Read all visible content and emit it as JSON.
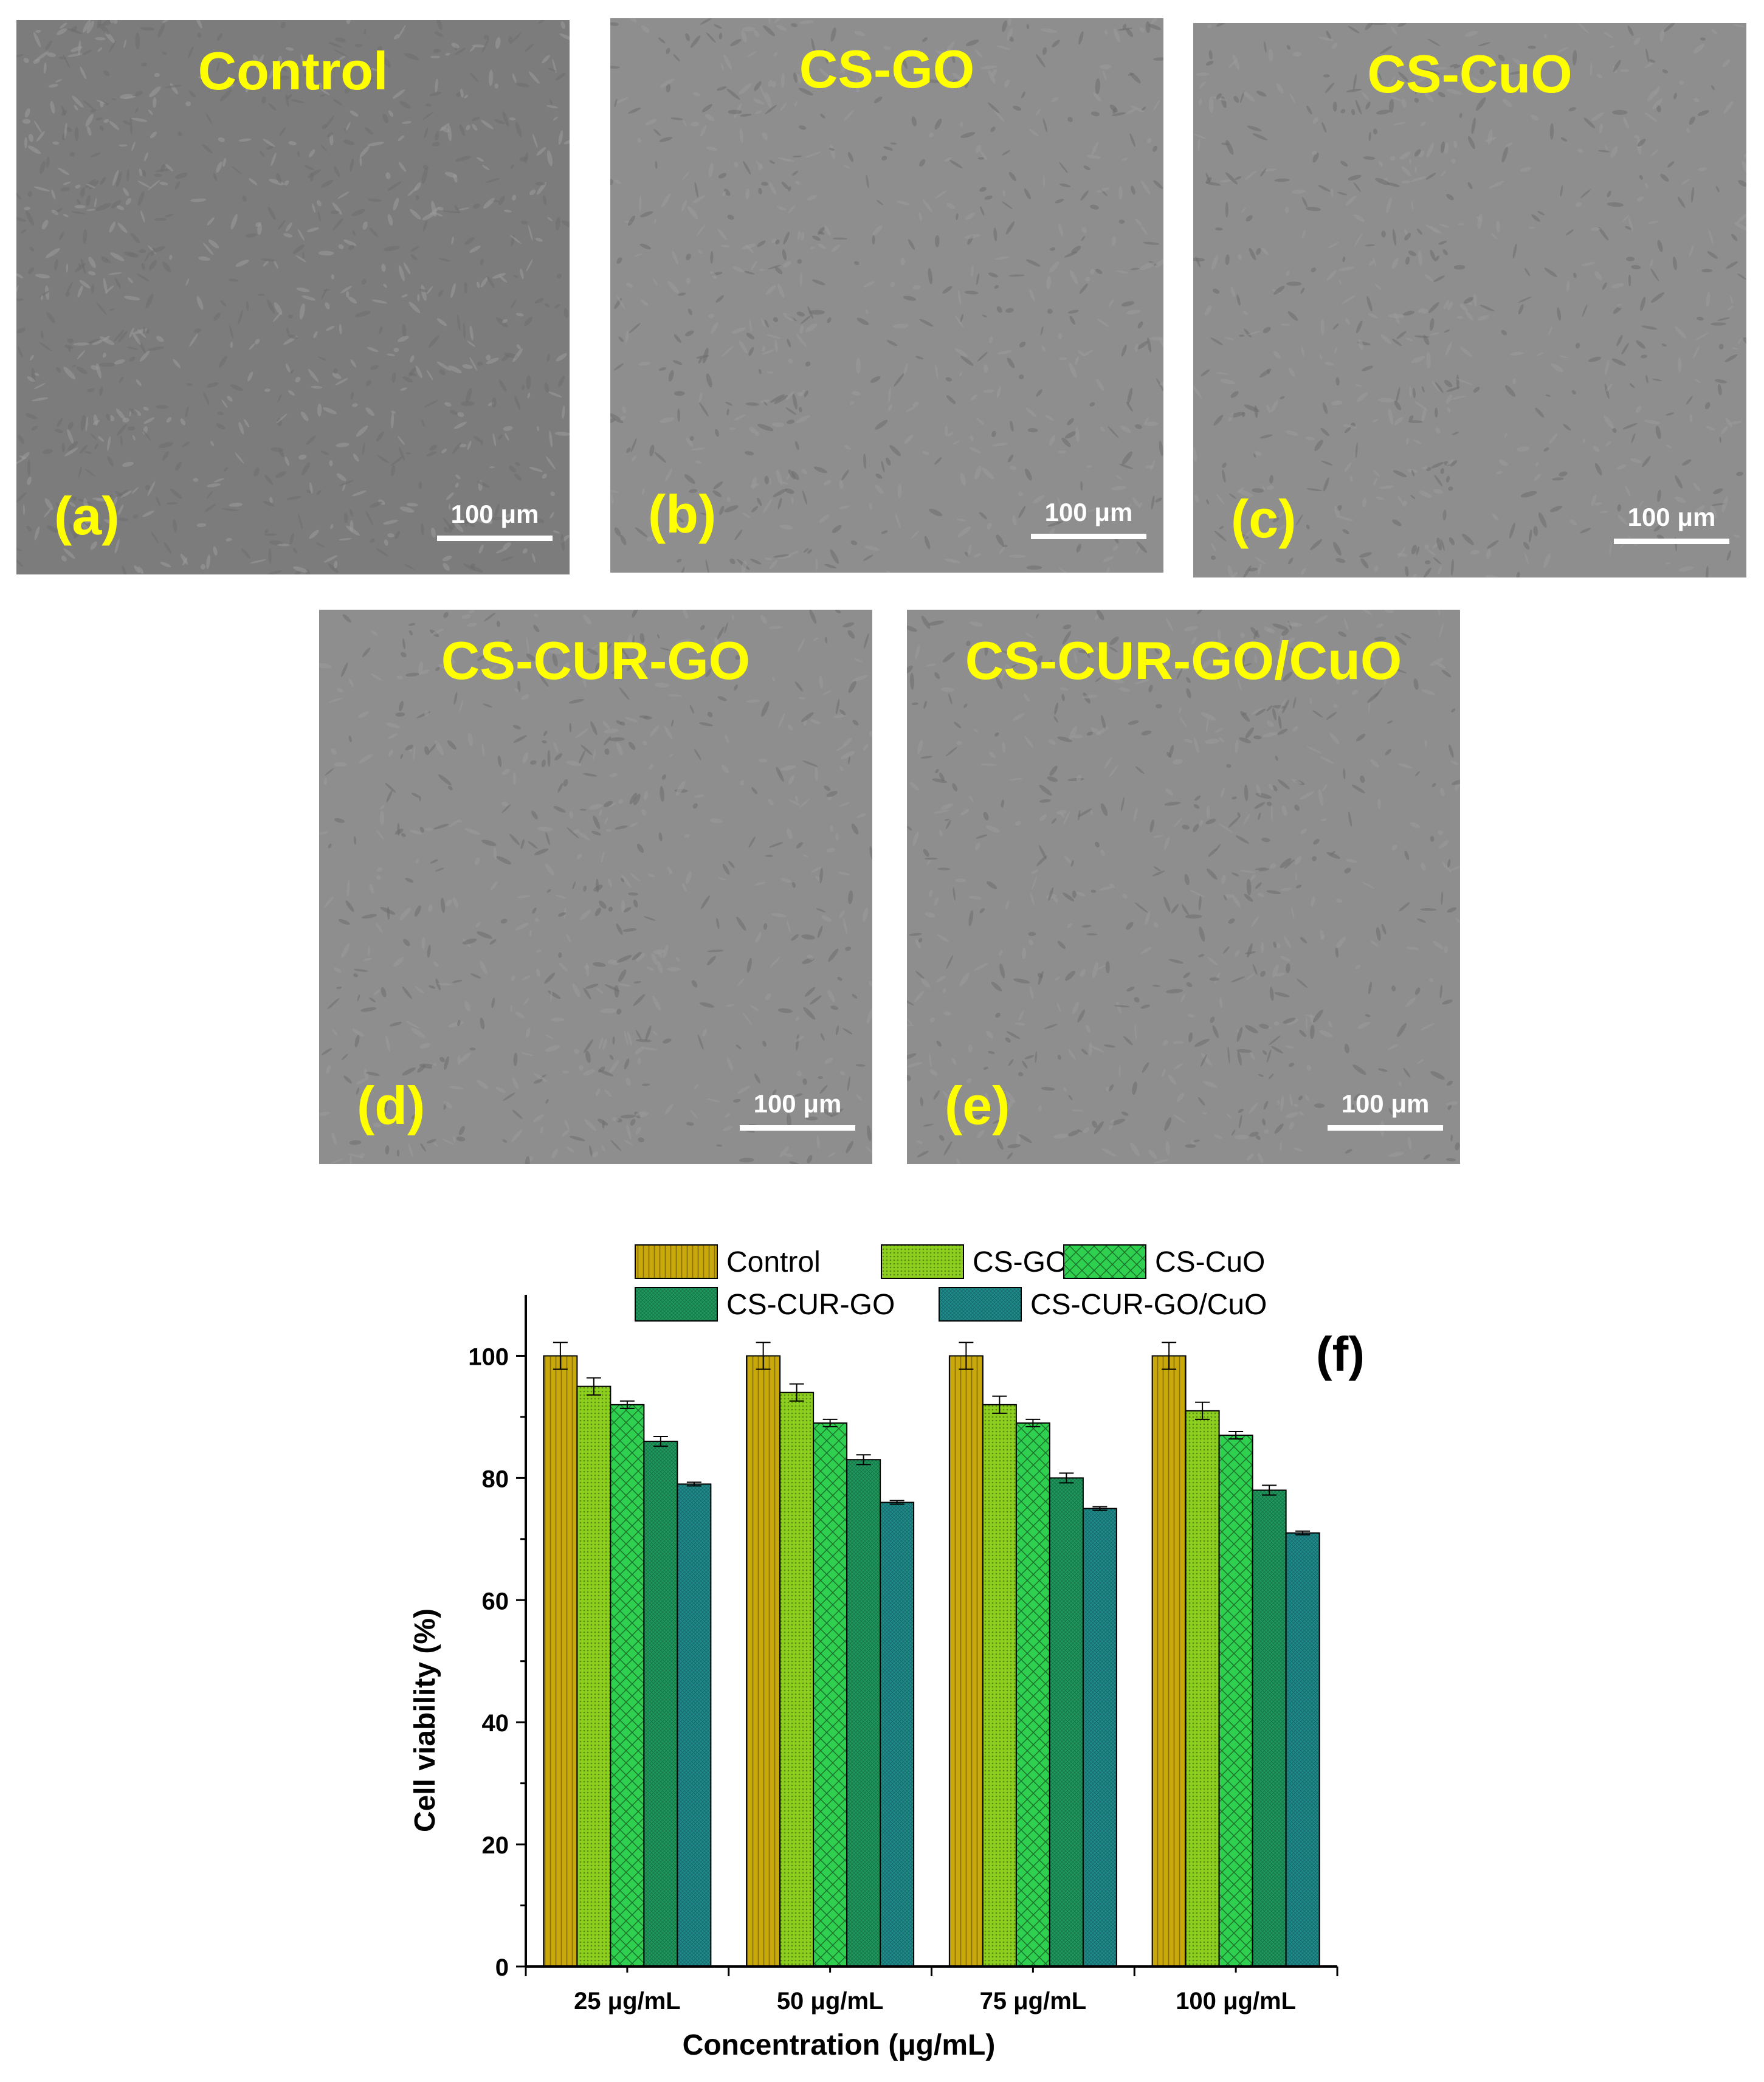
{
  "panels": [
    {
      "title": "Control",
      "label": "(a)",
      "scale": "100 μm"
    },
    {
      "title": "CS-GO",
      "label": "(b)",
      "scale": "100 μm"
    },
    {
      "title": "CS-CuO",
      "label": "(c)",
      "scale": "100 μm"
    },
    {
      "title": "CS-CUR-GO",
      "label": "(d)",
      "scale": "100 μm"
    },
    {
      "title": "CS-CUR-GO/CuO",
      "label": "(e)",
      "scale": "100 μm"
    }
  ],
  "colors": {
    "micrograph_dark": "#6e6e6e",
    "micrograph_light": "#9a9a9a",
    "label_yellow": "#ffff00"
  },
  "chart_data": {
    "type": "bar",
    "panel_label": "(f)",
    "xlabel": "Concentration (μg/mL)",
    "ylabel": "Cell viability (%)",
    "ylim": [
      0,
      110
    ],
    "yticks": [
      0,
      20,
      40,
      60,
      80,
      100
    ],
    "categories": [
      "25 μg/mL",
      "50 μg/mL",
      "75 μg/mL",
      "100 μg/mL"
    ],
    "legend_position": "top",
    "series": [
      {
        "name": "Control",
        "color": "#c8a80a",
        "pattern": "vertical-lines",
        "values": [
          100,
          100,
          100,
          100
        ],
        "errors": [
          2.2,
          2.2,
          2.2,
          2.2
        ]
      },
      {
        "name": "CS-GO",
        "color": "#8ccf1f",
        "pattern": "dense-dots",
        "values": [
          95,
          94,
          92,
          91
        ],
        "errors": [
          1.4,
          1.4,
          1.4,
          1.4
        ]
      },
      {
        "name": "CS-CuO",
        "color": "#2fcf4f",
        "pattern": "crosshatch",
        "values": [
          92,
          89,
          89,
          87
        ],
        "errors": [
          0.6,
          0.6,
          0.6,
          0.6
        ]
      },
      {
        "name": "CS-CUR-GO",
        "color": "#1f9a5f",
        "pattern": "fine-grid",
        "values": [
          86,
          83,
          80,
          78
        ],
        "errors": [
          0.8,
          0.8,
          0.8,
          0.8
        ]
      },
      {
        "name": "CS-CUR-GO/CuO",
        "color": "#1f8c8c",
        "pattern": "fine-grid",
        "values": [
          79,
          76,
          75,
          71
        ],
        "errors": [
          0.3,
          0.3,
          0.3,
          0.3
        ]
      }
    ]
  }
}
